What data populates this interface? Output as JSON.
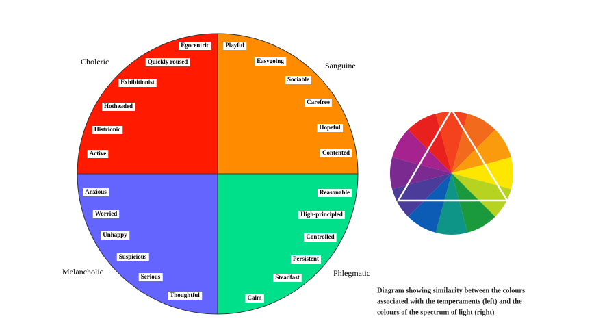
{
  "quadrants": [
    {
      "name": "Choleric",
      "labels": [
        "Egocentric",
        "Quickly roused",
        "Exhibitionist",
        "Hotheaded",
        "Histrionic",
        "Active"
      ]
    },
    {
      "name": "Sanguine",
      "labels": [
        "Playful",
        "Easygoing",
        "Sociable",
        "Carefree",
        "Hopeful",
        "Contented"
      ]
    },
    {
      "name": "Melancholic",
      "labels": [
        "Anxious",
        "Worried",
        "Unhappy",
        "Suspicious",
        "Serious",
        "Thoughtful"
      ]
    },
    {
      "name": "Phlegmatic",
      "labels": [
        "Reasonable",
        "High-principled",
        "Controlled",
        "Persistent",
        "Steadfast",
        "Calm"
      ]
    }
  ],
  "caption": [
    "Diagram showing similarity between the colours",
    "associated with the temperaments (left)  and the",
    "colours of the spectrum of light (right)"
  ]
}
